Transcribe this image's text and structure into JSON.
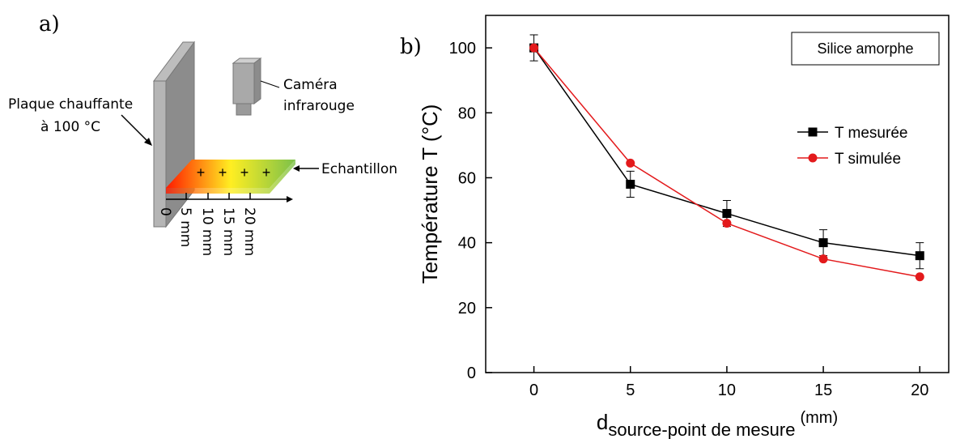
{
  "diagram": {
    "panel_label": "a)",
    "plate_label": [
      "Plaque chauffante",
      "à 100 °C"
    ],
    "camera_label": [
      "Caméra",
      "infrarouge"
    ],
    "sample_label": "Echantillon",
    "distance_labels": [
      "0",
      "5 mm",
      "10 mm",
      "15 mm",
      "20 mm"
    ]
  },
  "chart_data": {
    "type": "line",
    "panel_label": "b)",
    "annotation": "Silice amorphe",
    "y_label": "Température T (°C)",
    "x_label": {
      "main": "d",
      "sub": "source-point de mesure",
      "sup": "(mm)"
    },
    "x": [
      0,
      5,
      10,
      15,
      20
    ],
    "series": [
      {
        "name": "T mesurée",
        "color": "#000000",
        "marker": "square",
        "values": [
          100,
          58,
          49,
          40,
          36
        ],
        "errors": [
          4,
          4,
          4,
          4,
          4
        ]
      },
      {
        "name": "T simulée",
        "color": "#e31a1c",
        "marker": "circle",
        "values": [
          100,
          64.5,
          46,
          35,
          29.5
        ]
      }
    ],
    "xlim": [
      -2.5,
      21.5
    ],
    "xticks": [
      0,
      5,
      10,
      15,
      20
    ],
    "ylim": [
      0,
      110
    ],
    "yticks": [
      0,
      20,
      40,
      60,
      80,
      100
    ],
    "legend": "right",
    "grid": false
  }
}
